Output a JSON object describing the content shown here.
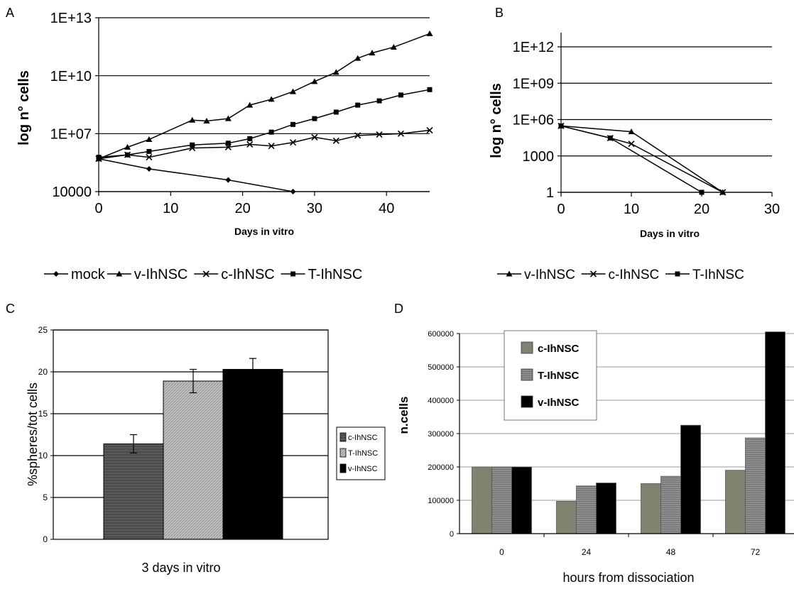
{
  "chart_data": [
    {
      "panel": "A",
      "type": "line",
      "xlabel": "Days in vitro",
      "ylabel": "log n° cells",
      "y_scale": "log",
      "ylim": [
        10000,
        10000000000000
      ],
      "y_ticks": [
        {
          "value": 10000,
          "label": "10000"
        },
        {
          "value": 10000000,
          "label": "1E+07"
        },
        {
          "value": 10000000000,
          "label": "1E+10"
        },
        {
          "value": 10000000000000,
          "label": "1E+13"
        }
      ],
      "xlim": [
        0,
        46
      ],
      "x_ticks": [
        0,
        10,
        20,
        30,
        40
      ],
      "legend": "bottom",
      "series": [
        {
          "name": "mock",
          "marker": "diamond",
          "points": [
            [
              0,
              500000
            ],
            [
              7,
              150000
            ],
            [
              18,
              40000
            ],
            [
              27,
              10000
            ]
          ]
        },
        {
          "name": "v-IhNSC",
          "marker": "triangle",
          "points": [
            [
              0,
              500000
            ],
            [
              4,
              2000000
            ],
            [
              7,
              5000000
            ],
            [
              13,
              50000000
            ],
            [
              15,
              45000000
            ],
            [
              18,
              60000000
            ],
            [
              21,
              300000000
            ],
            [
              24,
              600000000
            ],
            [
              27,
              1500000000
            ],
            [
              30,
              5000000000
            ],
            [
              33,
              15000000000
            ],
            [
              36,
              80000000000
            ],
            [
              38,
              150000000000
            ],
            [
              41,
              300000000000
            ],
            [
              46,
              1500000000000
            ]
          ]
        },
        {
          "name": "c-IhNSC",
          "marker": "x",
          "points": [
            [
              0,
              500000
            ],
            [
              4,
              800000
            ],
            [
              7,
              600000
            ],
            [
              13,
              1800000
            ],
            [
              18,
              2000000
            ],
            [
              21,
              2800000
            ],
            [
              24,
              2300000
            ],
            [
              27,
              3500000
            ],
            [
              30,
              6500000
            ],
            [
              33,
              4300000
            ],
            [
              36,
              8000000
            ],
            [
              39,
              9000000
            ],
            [
              42,
              10000000
            ],
            [
              46,
              15000000
            ]
          ]
        },
        {
          "name": "T-IhNSC",
          "marker": "square",
          "points": [
            [
              0,
              600000
            ],
            [
              4,
              800000
            ],
            [
              7,
              1200000
            ],
            [
              13,
              2600000
            ],
            [
              18,
              3200000
            ],
            [
              21,
              5500000
            ],
            [
              24,
              12000000
            ],
            [
              27,
              30000000
            ],
            [
              30,
              60000000
            ],
            [
              33,
              130000000
            ],
            [
              36,
              300000000
            ],
            [
              39,
              500000000
            ],
            [
              42,
              1000000000
            ],
            [
              46,
              1900000000
            ]
          ]
        }
      ]
    },
    {
      "panel": "B",
      "type": "line",
      "xlabel": "Days in vitro",
      "ylabel": "log n° cells",
      "y_scale": "log",
      "ylim": [
        1,
        1000000000000
      ],
      "y_ticks": [
        {
          "value": 1,
          "label": "1"
        },
        {
          "value": 1000,
          "label": "1000"
        },
        {
          "value": 1000000,
          "label": "1E+06"
        },
        {
          "value": 1000000000,
          "label": "1E+09"
        },
        {
          "value": 1000000000000,
          "label": "1E+12"
        }
      ],
      "xlim": [
        0,
        30
      ],
      "x_ticks": [
        0,
        10,
        20,
        30
      ],
      "legend": "bottom",
      "series": [
        {
          "name": "v-IhNSC",
          "marker": "triangle",
          "points": [
            [
              0,
              300000
            ],
            [
              10,
              100000
            ],
            [
              23,
              1
            ]
          ]
        },
        {
          "name": "c-IhNSC",
          "marker": "x",
          "points": [
            [
              0,
              300000
            ],
            [
              7,
              30000
            ],
            [
              10,
              10000
            ],
            [
              23,
              1
            ]
          ]
        },
        {
          "name": "T-IhNSC",
          "marker": "square",
          "points": [
            [
              0,
              300000
            ],
            [
              7,
              30000
            ],
            [
              20,
              1
            ]
          ]
        }
      ]
    },
    {
      "panel": "C",
      "type": "bar",
      "categories": [
        "3 days in vitro"
      ],
      "xlabel": "3 days in vitro",
      "ylabel": "%spheres/tot cells",
      "ylim": [
        0,
        25
      ],
      "y_ticks": [
        0,
        5,
        10,
        15,
        20,
        25
      ],
      "legend": "right",
      "series": [
        {
          "name": "c-IhNSC",
          "values": [
            11.4
          ],
          "error": [
            1.1
          ],
          "color": "#555555"
        },
        {
          "name": "T-IhNSC",
          "values": [
            18.9
          ],
          "error": [
            1.4
          ],
          "color": "#b4b4b4"
        },
        {
          "name": "v-IhNSC",
          "values": [
            20.3
          ],
          "error": [
            1.3
          ],
          "color": "#000000"
        }
      ]
    },
    {
      "panel": "D",
      "type": "bar",
      "categories": [
        "0",
        "24",
        "48",
        "72"
      ],
      "xlabel": "hours from dissociation",
      "ylabel": "n.cells",
      "ylim": [
        0,
        600000
      ],
      "y_ticks": [
        0,
        100000,
        200000,
        300000,
        400000,
        500000,
        600000
      ],
      "legend": "top-left",
      "series": [
        {
          "name": "c-IhNSC",
          "values": [
            200000,
            97000,
            150000,
            190000
          ],
          "color": "#7f8471"
        },
        {
          "name": "T-IhNSC",
          "values": [
            200000,
            143000,
            172000,
            287000
          ],
          "color": "#8a8a8a"
        },
        {
          "name": "v-IhNSC",
          "values": [
            200000,
            152000,
            325000,
            605000
          ],
          "color": "#000000"
        }
      ]
    }
  ],
  "panel_letters": [
    "A",
    "B",
    "C",
    "D"
  ]
}
